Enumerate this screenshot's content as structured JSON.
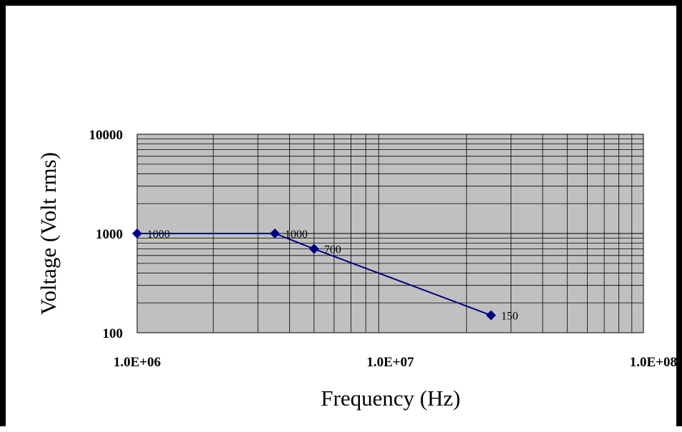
{
  "chart_data": {
    "type": "line",
    "title": "",
    "xlabel": "Frequency (Hz)",
    "ylabel": "Voltage (Volt rms)",
    "x_scale": "log",
    "y_scale": "log",
    "xlim": [
      1000000,
      100000000
    ],
    "ylim": [
      100,
      10000
    ],
    "x_tick_labels": [
      "1.0E+06",
      "1.0E+07",
      "1.0E+08"
    ],
    "y_tick_labels": [
      "10000",
      "1000",
      "100"
    ],
    "grid": true,
    "legend": "none",
    "plot_background": "#c0c0c0",
    "series": [
      {
        "color": "#000080",
        "marker": "diamond",
        "x": [
          1000000,
          3500000,
          5000000,
          25000000
        ],
        "y": [
          1000,
          1000,
          700,
          150
        ],
        "labels": [
          "1000",
          "1000",
          "700",
          "150"
        ]
      }
    ]
  }
}
